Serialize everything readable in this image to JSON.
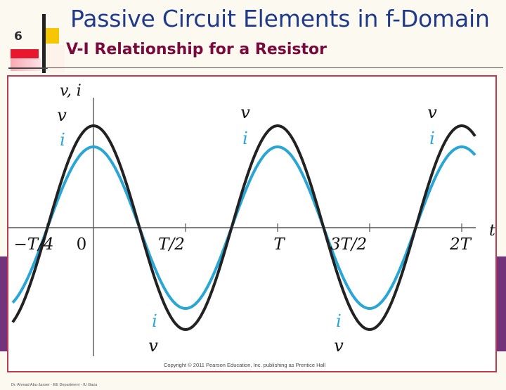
{
  "slide": {
    "number": "6",
    "title": "Passive Circuit Elements in f-Domain",
    "subtitle": "V-I Relationship for a Resistor",
    "footer": "Dr. Ahmad Abu-Jasser - EE Department - IU Gaza",
    "colors": {
      "title": "#1f3a8a",
      "subtitle": "#7a0a3c",
      "frame": "#c0394e",
      "band": "#72337a",
      "voltage_curve": "#222222",
      "current_curve": "#29a6d6",
      "accent_red": "#e8172d",
      "accent_yellow": "#f6c700"
    }
  },
  "figure": {
    "y_axis_label": "v, i",
    "x_axis_label": "t",
    "tick_labels": [
      "−T/4",
      "0",
      "T/2",
      "T",
      "3T/2",
      "2T"
    ],
    "curve_labels": {
      "voltage": "v",
      "current": "i"
    },
    "copyright": "Copyright © 2011 Pearson Education, Inc. publishing as Prentice Hall"
  }
}
